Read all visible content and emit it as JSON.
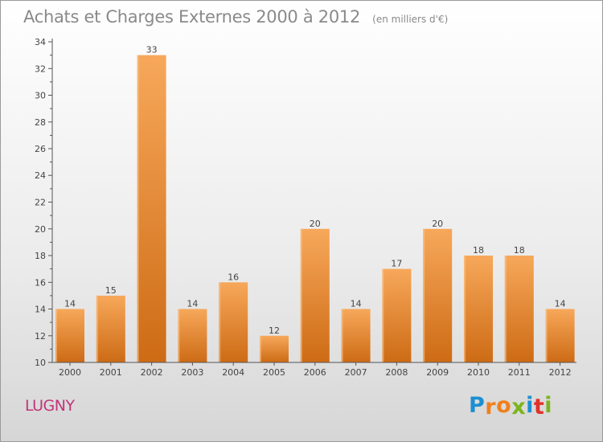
{
  "header": {
    "title": "Achats et Charges Externes 2000 à 2012",
    "subtitle": "(en milliers d'€)"
  },
  "footer": {
    "commune": "LUGNY",
    "logo_text": "Proxiti",
    "logo_colors": [
      "#1c8fd1",
      "#f0801d",
      "#f0801d",
      "#7cb51c",
      "#1c8fd1",
      "#e0322a",
      "#7cb51c"
    ]
  },
  "colors": {
    "bar_light": "#f7a85a",
    "bar_dark": "#cd6b15",
    "axis": "#555555",
    "text": "#444444"
  },
  "chart_data": {
    "type": "bar",
    "categories": [
      "2000",
      "2001",
      "2002",
      "2003",
      "2004",
      "2005",
      "2006",
      "2007",
      "2008",
      "2009",
      "2010",
      "2011",
      "2012"
    ],
    "values": [
      14,
      15,
      33,
      14,
      16,
      12,
      20,
      14,
      17,
      20,
      18,
      18,
      14
    ],
    "ylim": [
      10,
      34
    ],
    "yticks": [
      10,
      12,
      14,
      16,
      18,
      20,
      22,
      24,
      26,
      28,
      30,
      32,
      34
    ],
    "grid": false,
    "data_labels": true
  }
}
